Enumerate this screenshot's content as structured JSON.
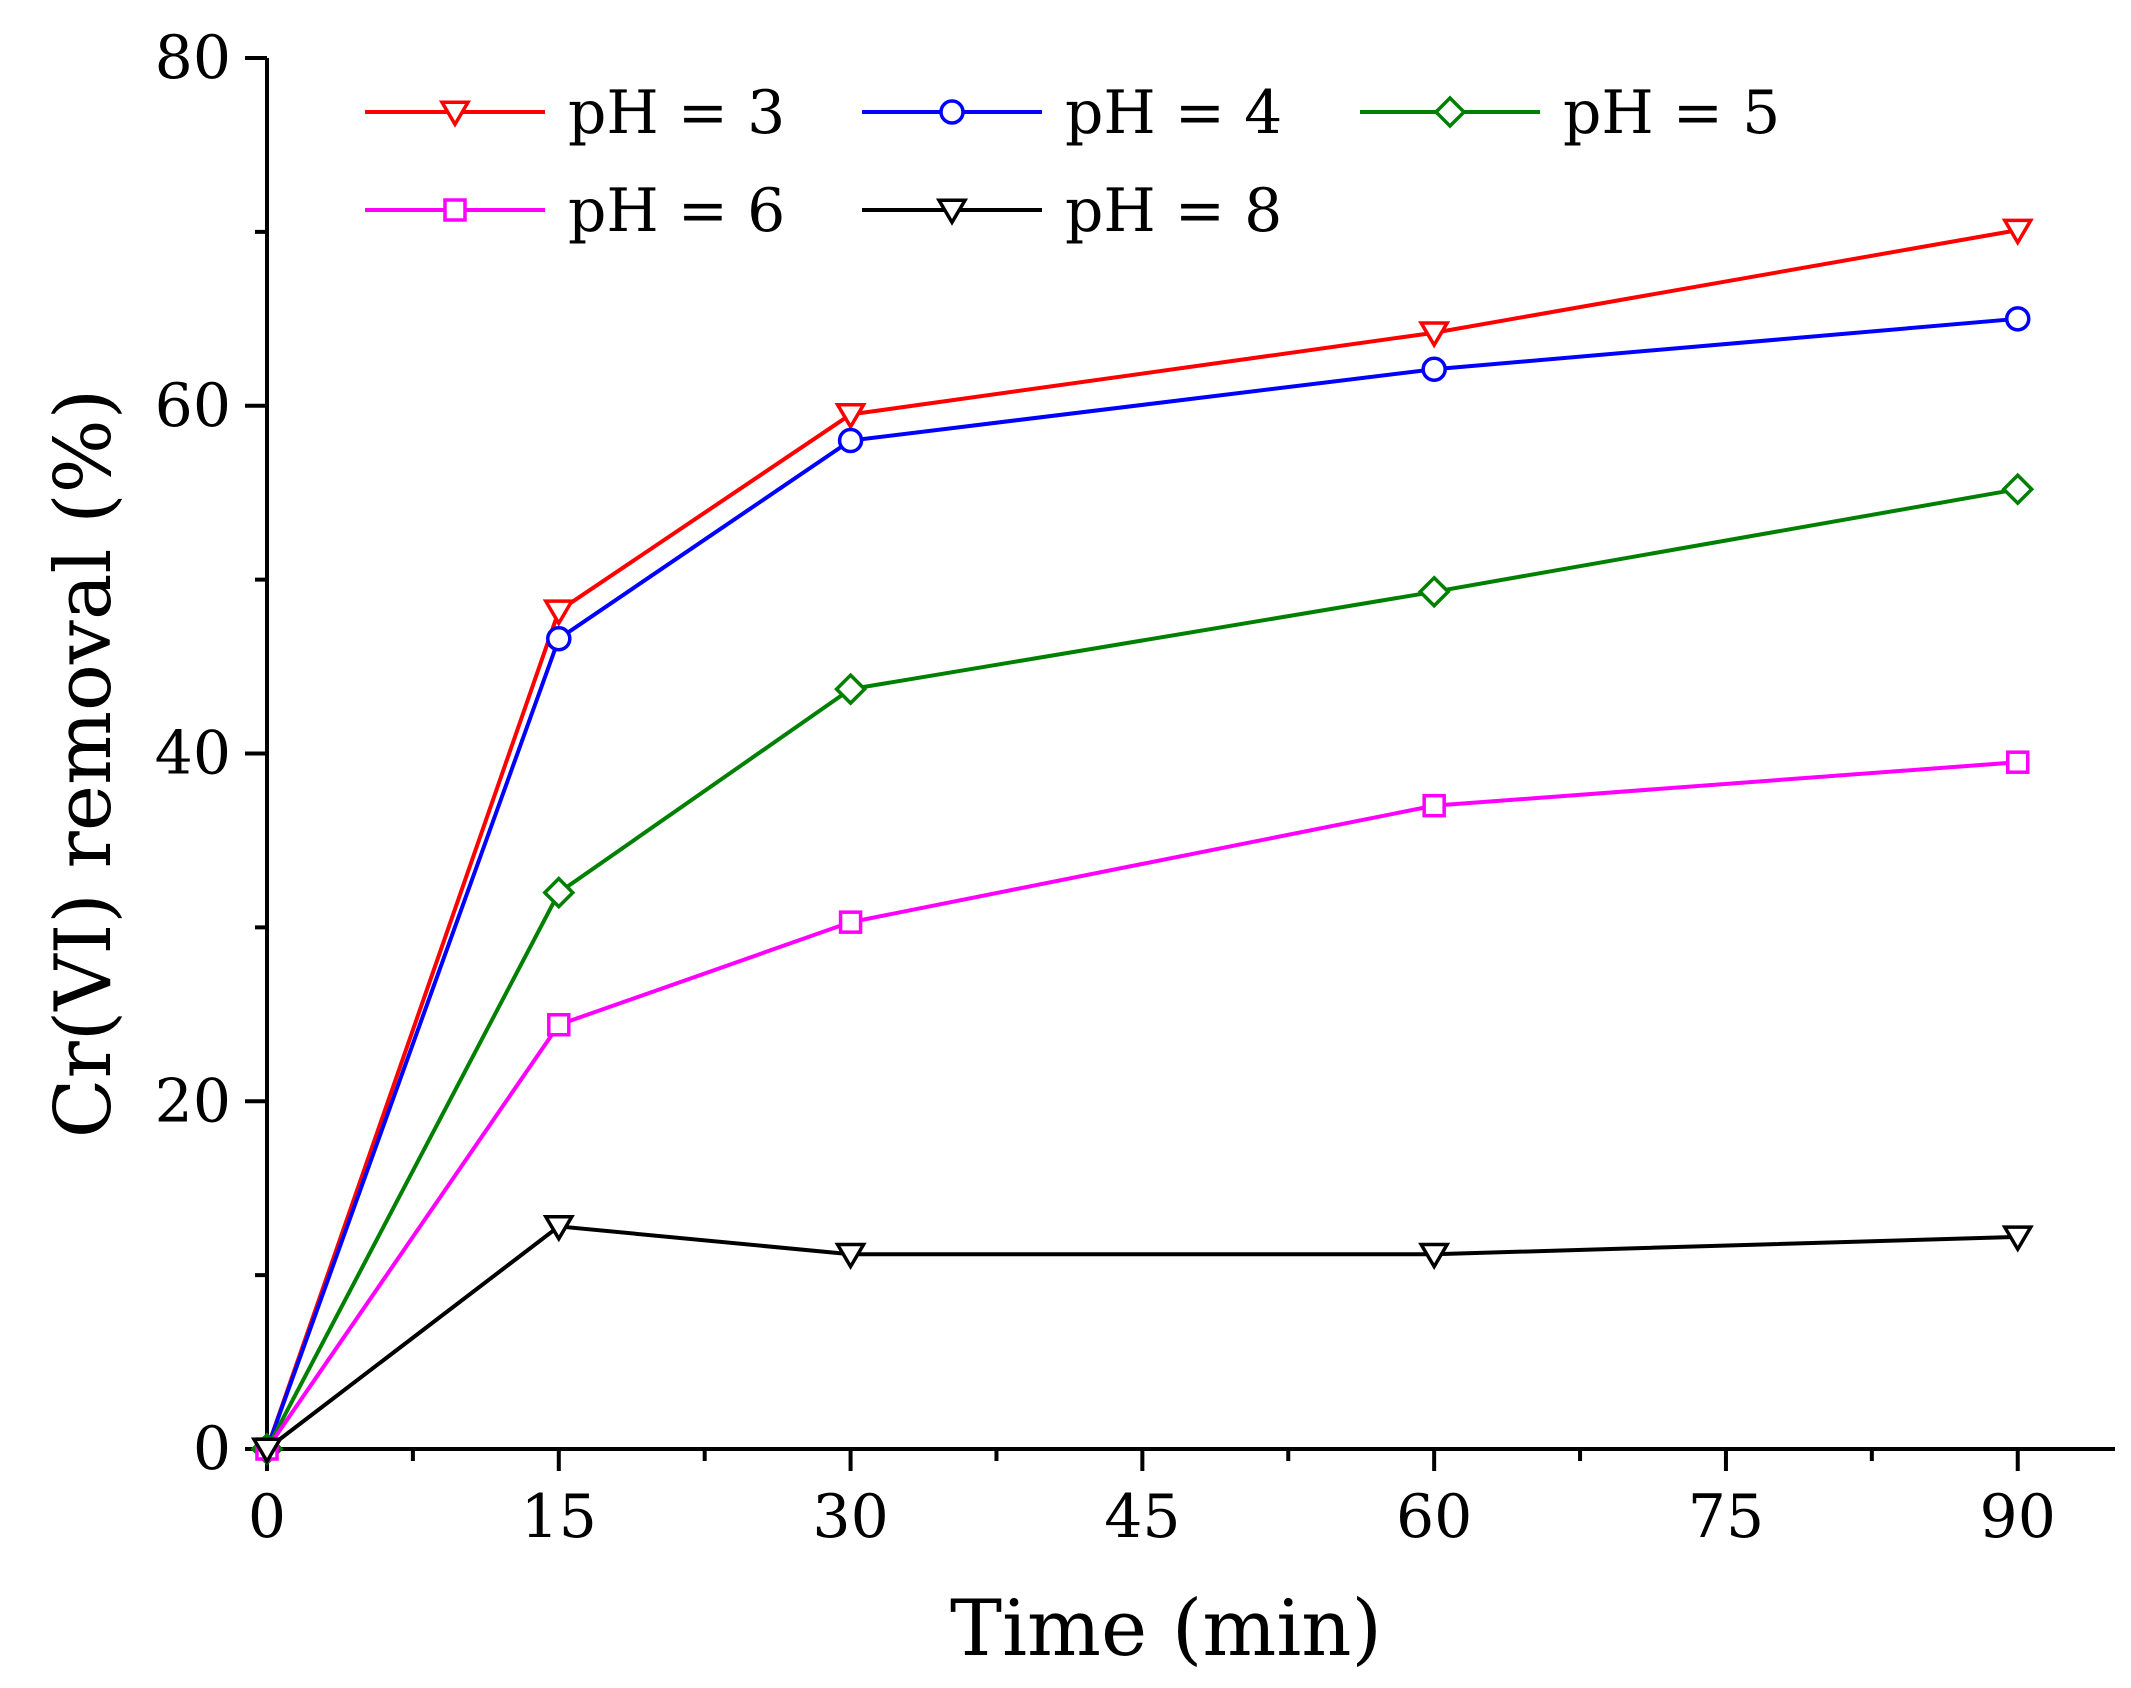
{
  "chart_data": {
    "type": "line",
    "title": "",
    "xlabel": "Time (min)",
    "ylabel": "Cr(VI) removal (%)",
    "xlim": [
      0,
      95
    ],
    "ylim": [
      0,
      80
    ],
    "xticks": [
      0,
      15,
      30,
      45,
      60,
      75,
      90
    ],
    "xtick_labels": [
      "0",
      "15",
      "30",
      "45",
      "60",
      "75",
      "90"
    ],
    "yticks": [
      0,
      20,
      40,
      60,
      80
    ],
    "ytick_labels": [
      "0",
      "20",
      "40",
      "60",
      "80"
    ],
    "legend_position": "top",
    "x": [
      0,
      15,
      30,
      60,
      90
    ],
    "series": [
      {
        "name": "pH = 3",
        "color": "#ff0000",
        "marker": "triangle-down",
        "values": [
          0,
          48.2,
          59.5,
          64.2,
          70.1
        ]
      },
      {
        "name": "pH = 4",
        "color": "#0000ff",
        "marker": "circle",
        "values": [
          0,
          46.6,
          58.0,
          62.1,
          65.0
        ]
      },
      {
        "name": "pH = 5",
        "color": "#008000",
        "marker": "diamond",
        "values": [
          0,
          32.0,
          43.7,
          49.3,
          55.2
        ]
      },
      {
        "name": "pH = 6",
        "color": "#ff00ff",
        "marker": "square",
        "values": [
          0,
          24.4,
          30.3,
          37.0,
          39.5
        ]
      },
      {
        "name": "pH = 8",
        "color": "#000000",
        "marker": "triangle-down",
        "values": [
          0,
          12.8,
          11.2,
          11.2,
          12.2
        ]
      }
    ]
  }
}
